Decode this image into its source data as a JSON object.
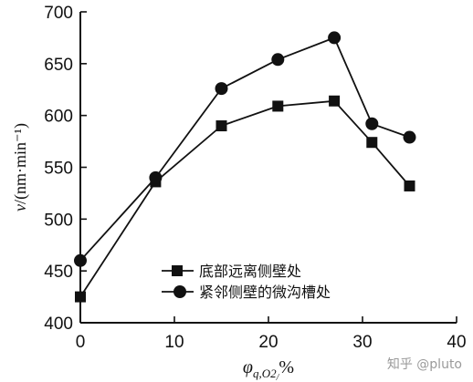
{
  "chart_data": {
    "type": "line",
    "xlabel": "φq,O2/%",
    "ylabel": "v/(nm·min⁻¹)",
    "xlim": [
      0,
      40
    ],
    "ylim": [
      400,
      700
    ],
    "xticks": [
      0,
      10,
      20,
      30,
      40
    ],
    "yticks": [
      400,
      450,
      500,
      550,
      600,
      650,
      700
    ],
    "legend_position": "bottom-center",
    "series": [
      {
        "name": "底部远离侧壁处",
        "marker": "square",
        "x": [
          0,
          8,
          15,
          21,
          27,
          31,
          35
        ],
        "y": [
          425,
          536,
          590,
          609,
          614,
          574,
          532
        ]
      },
      {
        "name": "紧邻侧壁的微沟槽处",
        "marker": "circle",
        "x": [
          0,
          8,
          15,
          21,
          27,
          31,
          35
        ],
        "y": [
          460,
          540,
          626,
          654,
          675,
          592,
          579
        ]
      }
    ]
  },
  "watermark": "知乎 @pluto"
}
